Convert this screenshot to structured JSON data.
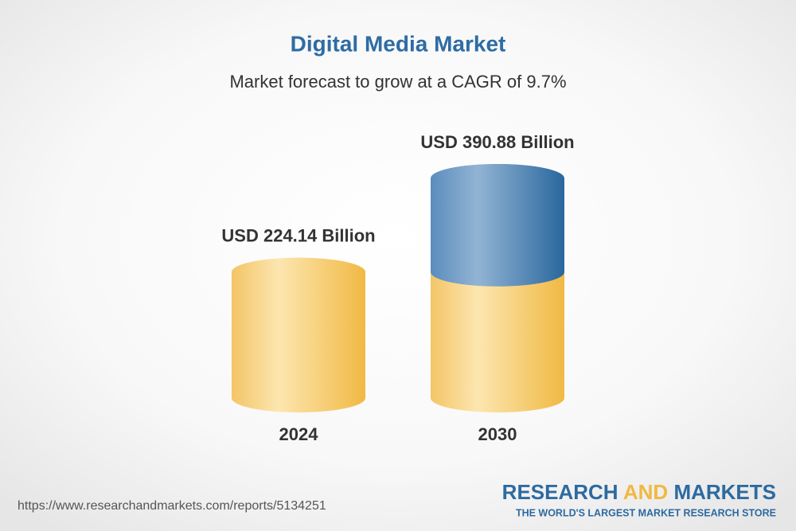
{
  "chart_data": {
    "type": "cylinder",
    "title": "Digital Media Market",
    "subtitle": "Market forecast to grow at a CAGR of 9.7%",
    "categories": [
      "2024",
      "2030"
    ],
    "values": [
      224.14,
      390.88
    ],
    "value_labels": [
      "USD 224.14 Billion",
      "USD 390.88 Billion"
    ],
    "colors": [
      "#f3c35e",
      "#4f86b8"
    ]
  },
  "footer": {
    "url": "https://www.researchandmarkets.com/reports/5134251",
    "brand": [
      "RESEARCH",
      "AND",
      "MARKETS"
    ],
    "tagline": "THE WORLD'S LARGEST MARKET RESEARCH STORE"
  }
}
